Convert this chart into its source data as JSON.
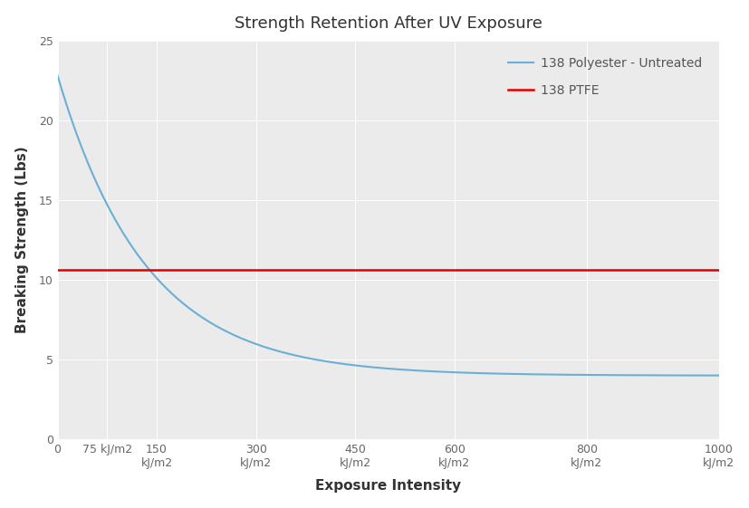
{
  "title": "Strength Retention After UV Exposure",
  "xlabel": "Exposure Intensity",
  "ylabel": "Breaking Strength (Lbs)",
  "background_color": "#ffffff",
  "plot_bg_color": "#ebebeb",
  "grid_color": "#ffffff",
  "grid_linewidth": 0.7,
  "ylim": [
    0,
    25
  ],
  "xlim": [
    0,
    1000
  ],
  "yticks": [
    0,
    5,
    10,
    15,
    20,
    25
  ],
  "xtick_positions": [
    0,
    75,
    150,
    300,
    450,
    600,
    800,
    1000
  ],
  "xtick_labels_line1": [
    "0",
    "75 kJ/m2",
    "150",
    "300",
    "450",
    "600",
    "800",
    "1000"
  ],
  "xtick_labels_line2": [
    "",
    "",
    "kJ/m2",
    "kJ/m2",
    "kJ/m2",
    "kJ/m2",
    "kJ/m2",
    "kJ/m2"
  ],
  "ptfe_value": 10.65,
  "ptfe_color": "#e00000",
  "ptfe_label": "138 PTFE",
  "ptfe_linewidth": 1.8,
  "polyester_color": "#6ab0d4",
  "polyester_label": "138 Polyester - Untreated",
  "polyester_linewidth": 1.5,
  "polyester_y_start": 22.8,
  "polyester_decay_rate": 0.0075,
  "polyester_asymptote": 4.0,
  "title_fontsize": 13,
  "axis_label_fontsize": 11,
  "tick_fontsize": 9,
  "legend_fontsize": 10,
  "legend_text_color": "#555555"
}
